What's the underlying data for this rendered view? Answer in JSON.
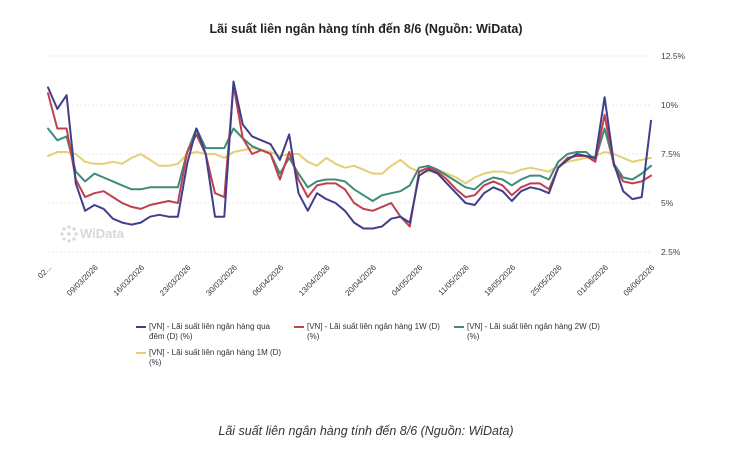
{
  "chart_data": {
    "type": "line",
    "title": "Lãi suất liên ngân hàng tính đến 8/6 (Nguồn: WiData)",
    "xlabel": "",
    "ylabel": "",
    "ylim": [
      2.5,
      12.5
    ],
    "y_ticks": [
      "2.5%",
      "5%",
      "7.5%",
      "10%",
      "12.5%"
    ],
    "y_tick_values": [
      2.5,
      5,
      7.5,
      10,
      12.5
    ],
    "x_tick_labels": [
      "02...",
      "09/03/2026",
      "16/03/2026",
      "23/03/2026",
      "30/03/2026",
      "06/04/2026",
      "13/04/2026",
      "20/04/2026",
      "04/05/2026",
      "11/05/2026",
      "18/05/2026",
      "25/05/2026",
      "01/06/2026",
      "08/06/2026"
    ],
    "grid": true,
    "legend_position": "bottom",
    "watermark": "WiData",
    "x": [
      "02/03/2026",
      "03/03/2026",
      "04/03/2026",
      "05/03/2026",
      "06/03/2026",
      "09/03/2026",
      "10/03/2026",
      "11/03/2026",
      "12/03/2026",
      "13/03/2026",
      "16/03/2026",
      "17/03/2026",
      "18/03/2026",
      "19/03/2026",
      "20/03/2026",
      "23/03/2026",
      "24/03/2026",
      "25/03/2026",
      "26/03/2026",
      "27/03/2026",
      "30/03/2026",
      "31/03/2026",
      "01/04/2026",
      "02/04/2026",
      "03/04/2026",
      "06/04/2026",
      "07/04/2026",
      "08/04/2026",
      "09/04/2026",
      "10/04/2026",
      "13/04/2026",
      "14/04/2026",
      "15/04/2026",
      "16/04/2026",
      "17/04/2026",
      "20/04/2026",
      "21/04/2026",
      "22/04/2026",
      "23/04/2026",
      "24/04/2026",
      "04/05/2026",
      "05/05/2026",
      "06/05/2026",
      "07/05/2026",
      "08/05/2026",
      "11/05/2026",
      "12/05/2026",
      "13/05/2026",
      "14/05/2026",
      "15/05/2026",
      "18/05/2026",
      "19/05/2026",
      "20/05/2026",
      "21/05/2026",
      "22/05/2026",
      "25/05/2026",
      "26/05/2026",
      "27/05/2026",
      "28/05/2026",
      "29/05/2026",
      "01/06/2026",
      "02/06/2026",
      "03/06/2026",
      "04/06/2026",
      "05/06/2026",
      "08/06/2026"
    ],
    "series": [
      {
        "name": "[VN] - Lãi suất liên ngân hàng qua đêm (D) (%)",
        "color": "#3f3f8c",
        "values": [
          10.9,
          9.8,
          10.5,
          6.0,
          4.6,
          4.9,
          4.7,
          4.2,
          4.0,
          3.9,
          4.0,
          4.3,
          4.4,
          4.3,
          4.3,
          7.0,
          8.8,
          7.5,
          4.3,
          4.3,
          11.2,
          9.0,
          8.4,
          8.2,
          8.0,
          7.2,
          8.5,
          5.5,
          4.6,
          5.5,
          5.2,
          5.0,
          4.6,
          4.0,
          3.7,
          3.7,
          3.8,
          4.2,
          4.3,
          4.0,
          6.4,
          6.7,
          6.5,
          6.0,
          5.5,
          5.0,
          4.9,
          5.5,
          5.8,
          5.6,
          5.1,
          5.6,
          5.8,
          5.7,
          5.5,
          6.8,
          7.2,
          7.5,
          7.4,
          7.3,
          10.4,
          7.0,
          5.6,
          5.2,
          5.3,
          9.2
        ]
      },
      {
        "name": "[VN] - Lãi suất liên ngân hàng 1W (D) (%)",
        "color": "#c0414c",
        "values": [
          10.6,
          8.8,
          8.8,
          6.2,
          5.3,
          5.5,
          5.6,
          5.3,
          5.0,
          4.8,
          4.7,
          4.9,
          5.0,
          5.1,
          5.0,
          7.6,
          8.5,
          7.5,
          5.5,
          5.3,
          11.0,
          8.3,
          7.5,
          7.7,
          7.5,
          6.2,
          7.6,
          6.2,
          5.3,
          5.9,
          6.0,
          6.0,
          5.7,
          5.0,
          4.7,
          4.6,
          4.8,
          5.0,
          4.3,
          3.8,
          6.6,
          6.8,
          6.6,
          6.2,
          5.7,
          5.3,
          5.4,
          5.9,
          6.1,
          5.9,
          5.4,
          5.8,
          6.0,
          6.0,
          5.7,
          6.8,
          7.3,
          7.4,
          7.4,
          7.1,
          9.5,
          6.9,
          6.1,
          6.0,
          6.1,
          6.4
        ]
      },
      {
        "name": "[VN] - Lãi suất liên ngân hàng 2W (D) (%)",
        "color": "#3d8b7b",
        "values": [
          8.8,
          8.2,
          8.4,
          6.6,
          6.1,
          6.5,
          6.3,
          6.1,
          5.9,
          5.7,
          5.7,
          5.8,
          5.8,
          5.8,
          5.8,
          7.6,
          8.8,
          7.8,
          7.8,
          7.8,
          8.8,
          8.3,
          7.9,
          7.7,
          7.5,
          6.5,
          7.3,
          6.5,
          5.8,
          6.1,
          6.2,
          6.2,
          6.1,
          5.7,
          5.4,
          5.1,
          5.4,
          5.5,
          5.6,
          5.9,
          6.8,
          6.9,
          6.7,
          6.4,
          6.1,
          5.8,
          5.7,
          6.1,
          6.3,
          6.2,
          5.9,
          6.2,
          6.4,
          6.4,
          6.2,
          7.1,
          7.5,
          7.6,
          7.6,
          7.2,
          8.8,
          7.0,
          6.3,
          6.2,
          6.5,
          6.9
        ]
      },
      {
        "name": "[VN] - Lãi suất liên ngân hàng 1M (D) (%)",
        "color": "#e6cf73",
        "values": [
          7.4,
          7.6,
          7.6,
          7.5,
          7.1,
          7.0,
          7.0,
          7.1,
          7.0,
          7.3,
          7.5,
          7.2,
          6.9,
          6.9,
          7.0,
          7.5,
          7.6,
          7.5,
          7.5,
          7.3,
          7.6,
          7.7,
          7.8,
          7.7,
          7.6,
          7.4,
          7.5,
          7.5,
          7.1,
          6.9,
          7.3,
          7.0,
          6.8,
          6.9,
          6.7,
          6.5,
          6.5,
          6.9,
          7.2,
          6.8,
          6.6,
          6.6,
          6.7,
          6.5,
          6.3,
          6.0,
          6.3,
          6.5,
          6.6,
          6.6,
          6.5,
          6.7,
          6.8,
          6.7,
          6.6,
          6.9,
          7.1,
          7.2,
          7.3,
          7.4,
          7.6,
          7.5,
          7.3,
          7.1,
          7.2,
          7.3
        ]
      }
    ]
  },
  "caption": "Lãi suất liên ngân hàng tính đến 8/6 (Nguồn: WiData)"
}
